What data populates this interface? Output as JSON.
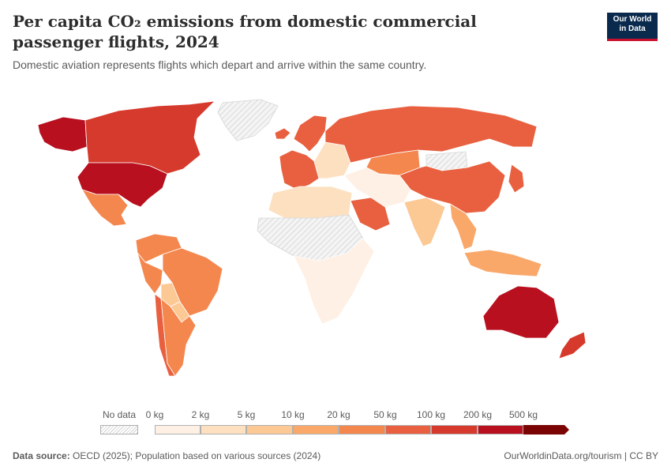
{
  "header": {
    "title": "Per capita CO₂ emissions from domestic commercial passenger flights, 2024",
    "subtitle": "Domestic aviation represents flights which depart and arrive within the same country."
  },
  "logo": {
    "line1": "Our World",
    "line2": "in Data"
  },
  "colors": {
    "no_data": "#eeeeee",
    "bins": [
      "#fef0e4",
      "#fde0c0",
      "#fcc894",
      "#f9a86a",
      "#f4874e",
      "#e8603f",
      "#d63a2c",
      "#b8101f",
      "#7a0403"
    ]
  },
  "legend": {
    "no_data_label": "No data",
    "tick_labels": [
      "0 kg",
      "2 kg",
      "5 kg",
      "10 kg",
      "20 kg",
      "50 kg",
      "100 kg",
      "200 kg",
      "500 kg"
    ]
  },
  "regions": [
    {
      "id": "alaska",
      "bin": 7
    },
    {
      "id": "canada",
      "bin": 6
    },
    {
      "id": "usa",
      "bin": 7
    },
    {
      "id": "mexico",
      "bin": 4
    },
    {
      "id": "greenland",
      "bin": -1
    },
    {
      "id": "colombia-venezuela",
      "bin": 4
    },
    {
      "id": "brazil",
      "bin": 4
    },
    {
      "id": "peru",
      "bin": 4
    },
    {
      "id": "bolivia",
      "bin": 2
    },
    {
      "id": "paraguay",
      "bin": 2
    },
    {
      "id": "chile",
      "bin": 5
    },
    {
      "id": "argentina",
      "bin": 4
    },
    {
      "id": "iceland",
      "bin": 5
    },
    {
      "id": "scandinavia",
      "bin": 5
    },
    {
      "id": "western-europe",
      "bin": 5
    },
    {
      "id": "eastern-europe",
      "bin": 1
    },
    {
      "id": "russia",
      "bin": 5
    },
    {
      "id": "kazakhstan",
      "bin": 4
    },
    {
      "id": "north-africa",
      "bin": 1
    },
    {
      "id": "africa-nodata",
      "bin": -1
    },
    {
      "id": "africa",
      "bin": 0
    },
    {
      "id": "saudi-arabia",
      "bin": 5
    },
    {
      "id": "middle-east",
      "bin": 0
    },
    {
      "id": "india",
      "bin": 2
    },
    {
      "id": "china",
      "bin": 5
    },
    {
      "id": "mongolia",
      "bin": -1
    },
    {
      "id": "japan",
      "bin": 5
    },
    {
      "id": "southeast-asia",
      "bin": 3
    },
    {
      "id": "indonesia",
      "bin": 3
    },
    {
      "id": "australia",
      "bin": 7
    },
    {
      "id": "new-zealand",
      "bin": 6
    }
  ],
  "footer": {
    "source_label": "Data source:",
    "source_text": "OECD (2025); Population based on various sources (2024)",
    "credit": "OurWorldinData.org/tourism | CC BY"
  }
}
